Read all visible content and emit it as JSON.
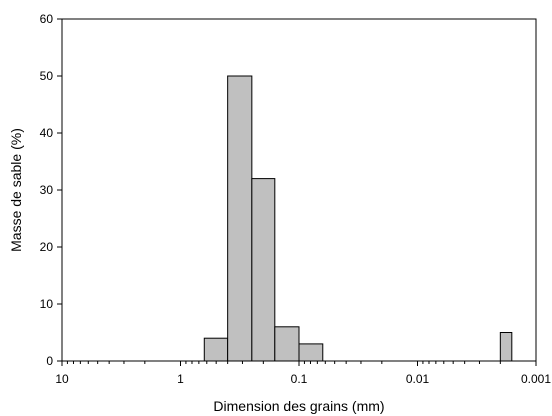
{
  "chart_data": {
    "type": "bar",
    "xlabel": "Dimension des grains (mm)",
    "ylabel": "Masse de sable (%)",
    "x_scale": "log-reversed",
    "xlim": [
      10,
      0.001
    ],
    "ylim": [
      0,
      60
    ],
    "grid": false,
    "x_ticks": [
      {
        "value": 10,
        "label": "10"
      },
      {
        "value": 1,
        "label": "1"
      },
      {
        "value": 0.1,
        "label": "0.1"
      },
      {
        "value": 0.01,
        "label": "0.01"
      },
      {
        "value": 0.001,
        "label": "0.001"
      }
    ],
    "y_ticks": [
      {
        "value": 0,
        "label": "0"
      },
      {
        "value": 10,
        "label": "10"
      },
      {
        "value": 20,
        "label": "20"
      },
      {
        "value": 30,
        "label": "30"
      },
      {
        "value": 40,
        "label": "40"
      },
      {
        "value": 50,
        "label": "50"
      },
      {
        "value": 60,
        "label": "60"
      }
    ],
    "bars": [
      {
        "x_from": 0.63,
        "x_to": 0.4,
        "value": 4
      },
      {
        "x_from": 0.4,
        "x_to": 0.25,
        "value": 50
      },
      {
        "x_from": 0.25,
        "x_to": 0.16,
        "value": 32
      },
      {
        "x_from": 0.16,
        "x_to": 0.1,
        "value": 6
      },
      {
        "x_from": 0.1,
        "x_to": 0.063,
        "value": 3
      },
      {
        "x_from": 0.002,
        "x_to": 0.0016,
        "value": 5
      }
    ],
    "colors": {
      "bar_fill": "#c0c0c0",
      "bar_stroke": "#000000",
      "axis": "#000000"
    }
  }
}
